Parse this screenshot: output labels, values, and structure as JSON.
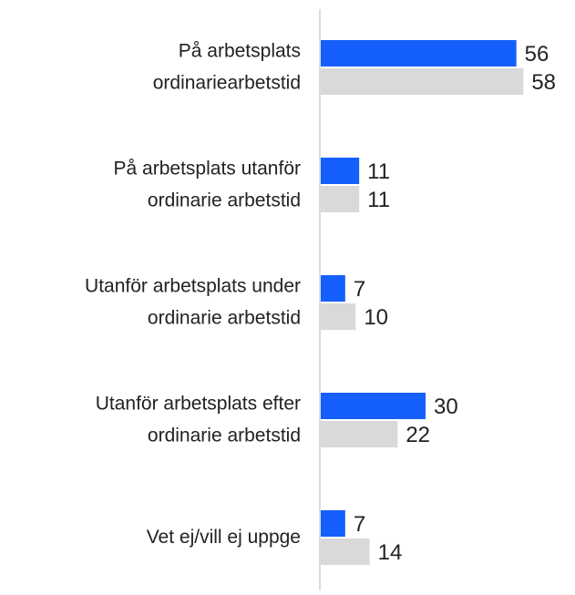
{
  "chart_data": {
    "type": "hbar",
    "categories": [
      "På arbetsplats\nordinariearbetstid",
      "På arbetsplats utanför\nordinarie arbetstid",
      "Utanför arbetsplats under\nordinarie arbetstid",
      "Utanför arbetsplats efter\nordinarie arbetstid",
      "Vet ej/vill ej uppge"
    ],
    "series": [
      {
        "color": "#1560fc",
        "values": [
          56,
          11,
          7,
          30,
          7
        ]
      },
      {
        "color": "#d9d9d9",
        "values": [
          58,
          11,
          10,
          22,
          14
        ]
      }
    ],
    "xlim": [
      0,
      72
    ]
  }
}
